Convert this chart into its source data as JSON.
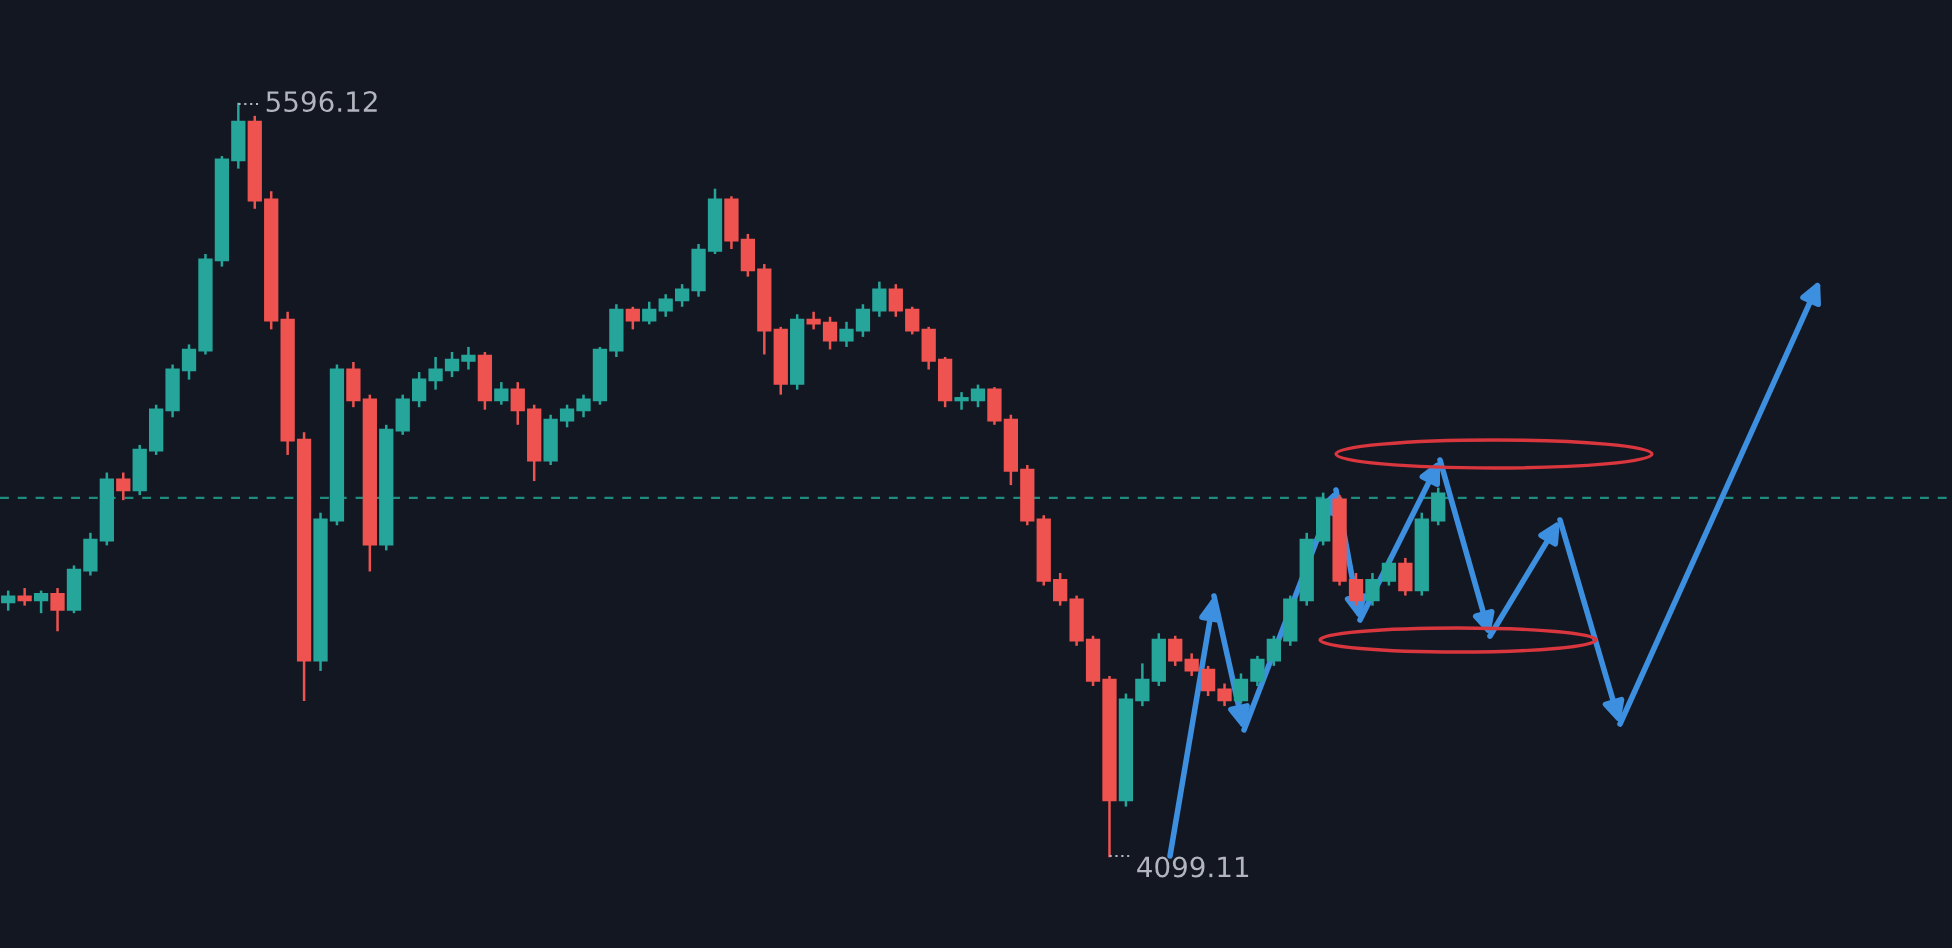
{
  "chart_data": {
    "type": "candlestick",
    "categories": [
      null,
      null,
      null,
      null,
      null,
      null,
      null,
      null,
      null,
      null,
      null,
      null,
      null,
      null,
      null,
      null,
      null,
      null,
      null,
      null,
      null,
      null,
      null,
      null,
      null,
      null,
      null,
      null,
      null,
      null,
      null,
      null,
      null,
      null,
      null,
      null,
      null,
      null,
      null,
      null,
      null,
      null,
      null,
      null,
      null,
      null,
      null,
      null,
      null,
      null,
      null,
      null,
      null,
      null,
      null,
      null,
      null,
      null,
      null,
      null,
      null,
      null,
      null,
      null,
      null,
      null,
      null,
      null,
      null,
      null,
      null,
      null,
      null,
      null,
      null,
      null,
      null,
      null,
      null,
      null,
      null,
      null,
      null,
      null,
      null,
      null,
      null,
      null
    ],
    "ohlc": [
      [
        4605,
        4625,
        4590,
        4615
      ],
      [
        4615,
        4630,
        4600,
        4609
      ],
      [
        4609,
        4625,
        4585,
        4620
      ],
      [
        4620,
        4630,
        4549,
        4590
      ],
      [
        4590,
        4675,
        4585,
        4668
      ],
      [
        4668,
        4740,
        4660,
        4728
      ],
      [
        4728,
        4860,
        4720,
        4848
      ],
      [
        4848,
        4860,
        4810,
        4828
      ],
      [
        4828,
        4915,
        4820,
        4907
      ],
      [
        4907,
        4995,
        4900,
        4987
      ],
      [
        4987,
        5075,
        4975,
        5067
      ],
      [
        5067,
        5115,
        5050,
        5106
      ],
      [
        5106,
        5295,
        5100,
        5286
      ],
      [
        5286,
        5490,
        5275,
        5485
      ],
      [
        5485,
        5596.12,
        5470,
        5560
      ],
      [
        5560,
        5570,
        5390,
        5405
      ],
      [
        5405,
        5420,
        5150,
        5166
      ],
      [
        5166,
        5180,
        4900,
        4927
      ],
      [
        4927,
        4940,
        4410,
        4489
      ],
      [
        4489,
        4780,
        4470,
        4768
      ],
      [
        4768,
        5075,
        4760,
        5067
      ],
      [
        5067,
        5080,
        4995,
        5007
      ],
      [
        5007,
        5015,
        4668,
        4720
      ],
      [
        4720,
        4955,
        4710,
        4947
      ],
      [
        4947,
        5015,
        4940,
        5007
      ],
      [
        5007,
        5060,
        4995,
        5047
      ],
      [
        5047,
        5090,
        5030,
        5067
      ],
      [
        5067,
        5100,
        5055,
        5086
      ],
      [
        5086,
        5110,
        5070,
        5094
      ],
      [
        5094,
        5100,
        4990,
        5007
      ],
      [
        5007,
        5040,
        5000,
        5027
      ],
      [
        5027,
        5040,
        4960,
        4987
      ],
      [
        4987,
        4995,
        4848,
        4887
      ],
      [
        4887,
        4975,
        4880,
        4967
      ],
      [
        4967,
        4995,
        4955,
        4987
      ],
      [
        4987,
        5015,
        4975,
        5007
      ],
      [
        5007,
        5110,
        5000,
        5106
      ],
      [
        5106,
        5195,
        5095,
        5186
      ],
      [
        5186,
        5190,
        5150,
        5166
      ],
      [
        5166,
        5200,
        5160,
        5186
      ],
      [
        5186,
        5215,
        5175,
        5206
      ],
      [
        5206,
        5235,
        5195,
        5226
      ],
      [
        5226,
        5315,
        5215,
        5305
      ],
      [
        5305,
        5425,
        5300,
        5405
      ],
      [
        5405,
        5410,
        5310,
        5325
      ],
      [
        5325,
        5335,
        5255,
        5266
      ],
      [
        5266,
        5275,
        5100,
        5146
      ],
      [
        5146,
        5150,
        5020,
        5040
      ],
      [
        5040,
        5175,
        5030,
        5166
      ],
      [
        5166,
        5180,
        5150,
        5160
      ],
      [
        5160,
        5170,
        5110,
        5126
      ],
      [
        5126,
        5160,
        5115,
        5146
      ],
      [
        5146,
        5195,
        5135,
        5186
      ],
      [
        5186,
        5240,
        5175,
        5226
      ],
      [
        5226,
        5235,
        5175,
        5186
      ],
      [
        5186,
        5190,
        5140,
        5146
      ],
      [
        5146,
        5150,
        5070,
        5086
      ],
      [
        5086,
        5090,
        4995,
        5007
      ],
      [
        5007,
        5020,
        4990,
        5007
      ],
      [
        5007,
        5035,
        4995,
        5027
      ],
      [
        5027,
        5030,
        4960,
        4967
      ],
      [
        4967,
        4975,
        4840,
        4867
      ],
      [
        4867,
        4875,
        4760,
        4768
      ],
      [
        4768,
        4775,
        4640,
        4648
      ],
      [
        4648,
        4660,
        4600,
        4609
      ],
      [
        4609,
        4615,
        4520,
        4529
      ],
      [
        4529,
        4535,
        4440,
        4449
      ],
      [
        4449,
        4455,
        4099.11,
        4211
      ],
      [
        4211,
        4420,
        4200,
        4410
      ],
      [
        4410,
        4480,
        4400,
        4449
      ],
      [
        4449,
        4540,
        4440,
        4529
      ],
      [
        4529,
        4535,
        4480,
        4489
      ],
      [
        4489,
        4500,
        4460,
        4469
      ],
      [
        4469,
        4475,
        4420,
        4430
      ],
      [
        4430,
        4440,
        4400,
        4410
      ],
      [
        4410,
        4460,
        4405,
        4449
      ],
      [
        4449,
        4495,
        4440,
        4489
      ],
      [
        4489,
        4535,
        4480,
        4529
      ],
      [
        4529,
        4615,
        4520,
        4609
      ],
      [
        4609,
        4740,
        4600,
        4728
      ],
      [
        4728,
        4820,
        4720,
        4808
      ],
      [
        4808,
        4815,
        4640,
        4648
      ],
      [
        4648,
        4660,
        4600,
        4609
      ],
      [
        4609,
        4660,
        4600,
        4648
      ],
      [
        4648,
        4690,
        4640,
        4680
      ],
      [
        4680,
        4690,
        4620,
        4629
      ],
      [
        4629,
        4780,
        4620,
        4768
      ],
      [
        4768,
        4830,
        4760,
        4820
      ]
    ],
    "ref_lines": [
      {
        "axis": "y",
        "value": 4812,
        "color": "#1e8c7e",
        "line_style": "dashed"
      }
    ],
    "annotations": [
      "5596.12",
      "4099.11"
    ],
    "legend": false
  }
}
